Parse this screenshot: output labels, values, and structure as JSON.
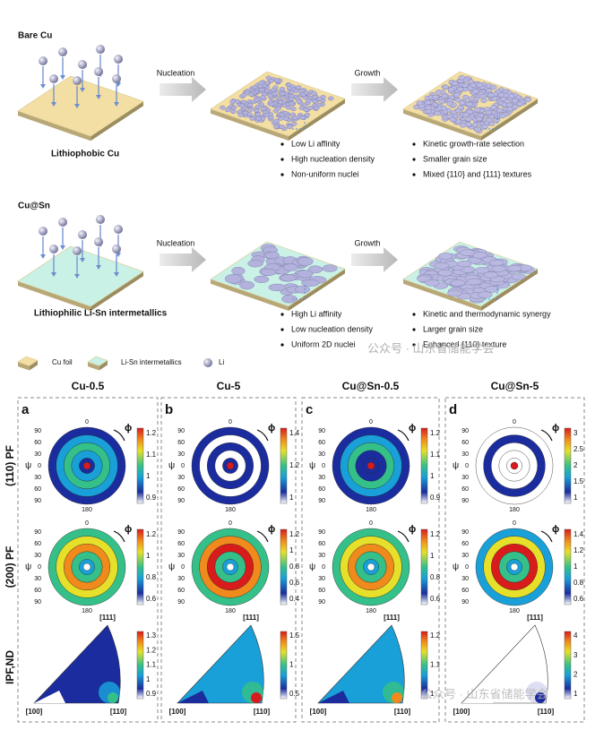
{
  "schematic": {
    "rows": [
      {
        "label": "Bare Cu",
        "substrate": "Lithiophobic Cu",
        "steps": [
          "Nucleation",
          "Growth"
        ],
        "notes": [
          [
            "Low Li affinity",
            "High nucleation density",
            "Non-uniform nuclei"
          ],
          [
            "Kinetic growth-rate selection",
            "Smaller grain size",
            "Mixed {110} and {111} textures"
          ]
        ]
      },
      {
        "label": "Cu@Sn",
        "substrate": "Lithiophilic Li-Sn intermetallics",
        "steps": [
          "Nucleation",
          "Growth"
        ],
        "notes": [
          [
            "High Li affinity",
            "Low nucleation density",
            "Uniform 2D nuclei"
          ],
          [
            "Kinetic and thermodynamic synergy",
            "Larger grain size",
            "Enhanced {110} texture"
          ]
        ]
      }
    ],
    "legend": [
      "Cu foil",
      "Li-Sn intermetallics",
      "Li"
    ]
  },
  "watermark": "公众号 · 山东省储能学会",
  "figure": {
    "row_labels": [
      "(110) PF",
      "(200) PF",
      "IPF,ND"
    ],
    "psi_label": "ψ",
    "phi_label": "ϕ",
    "psi_ticks": [
      "90",
      "60",
      "30",
      "0",
      "30",
      "60",
      "90"
    ],
    "top_label": "0",
    "bottom_label": "180",
    "ipf_corners": [
      "[111]",
      "[100]",
      "[110]"
    ],
    "panels": [
      {
        "letter": "a",
        "title": "Cu-0.5",
        "colorbars": [
          [
            1.2,
            1.1,
            1,
            0.9
          ],
          [
            1.2,
            1,
            0.8,
            0.6
          ],
          [
            1.3,
            1.2,
            1.1,
            1,
            0.9
          ]
        ]
      },
      {
        "letter": "b",
        "title": "Cu-5",
        "colorbars": [
          [
            1.4,
            1.2,
            1
          ],
          [
            1.2,
            1,
            0.8,
            0.6,
            0.4
          ],
          [
            1.5,
            1,
            0.5
          ]
        ]
      },
      {
        "letter": "c",
        "title": "Cu@Sn-0.5",
        "colorbars": [
          [
            1.2,
            1.1,
            1,
            0.9
          ],
          [
            1.2,
            1,
            0.8,
            0.6
          ],
          [
            1.2,
            1.1,
            1
          ]
        ]
      },
      {
        "letter": "d",
        "title": "Cu@Sn-5",
        "colorbars": [
          [
            3,
            2.5,
            2,
            1.5,
            1
          ],
          [
            1.4,
            1.2,
            1,
            0.8,
            0.6
          ],
          [
            4,
            3,
            2,
            1
          ]
        ]
      }
    ]
  }
}
